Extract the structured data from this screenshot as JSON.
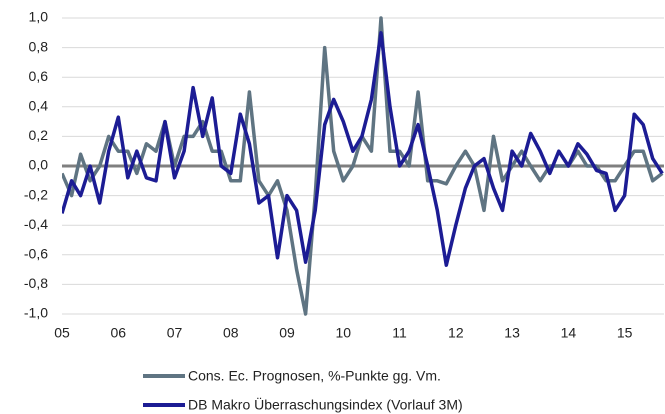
{
  "chart_data": {
    "type": "line",
    "x": [
      2005,
      2005.17,
      2005.33,
      2005.5,
      2005.67,
      2005.83,
      2006,
      2006.17,
      2006.33,
      2006.5,
      2006.67,
      2006.83,
      2007,
      2007.17,
      2007.33,
      2007.5,
      2007.67,
      2007.83,
      2008,
      2008.17,
      2008.33,
      2008.5,
      2008.67,
      2008.83,
      2009,
      2009.17,
      2009.33,
      2009.5,
      2009.67,
      2009.83,
      2010,
      2010.17,
      2010.33,
      2010.5,
      2010.67,
      2010.83,
      2011,
      2011.17,
      2011.33,
      2011.5,
      2011.67,
      2011.83,
      2012,
      2012.17,
      2012.33,
      2012.5,
      2012.67,
      2012.83,
      2013,
      2013.17,
      2013.33,
      2013.5,
      2013.67,
      2013.83,
      2014,
      2014.17,
      2014.33,
      2014.5,
      2014.67,
      2014.83,
      2015,
      2015.17,
      2015.33,
      2015.5,
      2015.67
    ],
    "series": [
      {
        "name": "Cons. Ec. Prognosen, %-Punkte gg. Vm.",
        "color": "#5f7482",
        "values": [
          -0.05,
          -0.2,
          0.08,
          -0.1,
          0.0,
          0.2,
          0.1,
          0.1,
          -0.05,
          0.15,
          0.1,
          0.3,
          0.0,
          0.2,
          0.2,
          0.3,
          0.1,
          0.1,
          -0.1,
          -0.1,
          0.5,
          -0.1,
          -0.2,
          -0.1,
          -0.3,
          -0.7,
          -1.0,
          -0.2,
          0.8,
          0.1,
          -0.1,
          0.0,
          0.2,
          0.1,
          1.0,
          0.1,
          0.1,
          0.0,
          0.5,
          -0.1,
          -0.1,
          -0.12,
          0.0,
          0.1,
          0.0,
          -0.3,
          0.2,
          -0.1,
          0.0,
          0.1,
          0.0,
          -0.1,
          0.0,
          0.0,
          0.0,
          0.1,
          0.0,
          0.0,
          -0.1,
          -0.1,
          0.0,
          0.1,
          0.1,
          -0.1,
          -0.05
        ]
      },
      {
        "name": "DB Makro Überraschungsindex (Vorlauf 3M)",
        "color": "#1c1c94",
        "values": [
          -0.32,
          -0.1,
          -0.2,
          0.0,
          -0.25,
          0.1,
          0.33,
          -0.08,
          0.1,
          -0.08,
          -0.1,
          0.3,
          -0.08,
          0.1,
          0.53,
          0.2,
          0.46,
          0.0,
          -0.05,
          0.35,
          0.15,
          -0.25,
          -0.2,
          -0.62,
          -0.2,
          -0.3,
          -0.65,
          -0.3,
          0.28,
          0.45,
          0.3,
          0.1,
          0.2,
          0.45,
          0.9,
          0.4,
          0.0,
          0.1,
          0.28,
          0.0,
          -0.3,
          -0.67,
          -0.4,
          -0.15,
          0.0,
          0.05,
          -0.15,
          -0.3,
          0.1,
          0.0,
          0.22,
          0.1,
          -0.05,
          0.1,
          0.0,
          0.15,
          0.08,
          -0.03,
          -0.05,
          -0.3,
          -0.2,
          0.35,
          0.28,
          0.05,
          -0.05
        ]
      }
    ],
    "xlim": [
      2005,
      2015.7
    ],
    "xticks": [
      {
        "value": 2005,
        "label": "05"
      },
      {
        "value": 2006,
        "label": "06"
      },
      {
        "value": 2007,
        "label": "07"
      },
      {
        "value": 2008,
        "label": "08"
      },
      {
        "value": 2009,
        "label": "09"
      },
      {
        "value": 2010,
        "label": "10"
      },
      {
        "value": 2011,
        "label": "11"
      },
      {
        "value": 2012,
        "label": "12"
      },
      {
        "value": 2013,
        "label": "13"
      },
      {
        "value": 2014,
        "label": "14"
      },
      {
        "value": 2015,
        "label": "15"
      }
    ],
    "ylim": [
      -1,
      1
    ],
    "yticks": [
      {
        "value": -1,
        "label": "-1,0"
      },
      {
        "value": -0.8,
        "label": "-0,8"
      },
      {
        "value": -0.6,
        "label": "-0,6"
      },
      {
        "value": -0.4,
        "label": "-0,4"
      },
      {
        "value": -0.2,
        "label": "-0,2"
      },
      {
        "value": 0,
        "label": "0,0"
      },
      {
        "value": 0.2,
        "label": "0,2"
      },
      {
        "value": 0.4,
        "label": "0,4"
      },
      {
        "value": 0.6,
        "label": "0,6"
      },
      {
        "value": 0.8,
        "label": "0,8"
      },
      {
        "value": 1,
        "label": "1,0"
      }
    ],
    "grid": true
  }
}
